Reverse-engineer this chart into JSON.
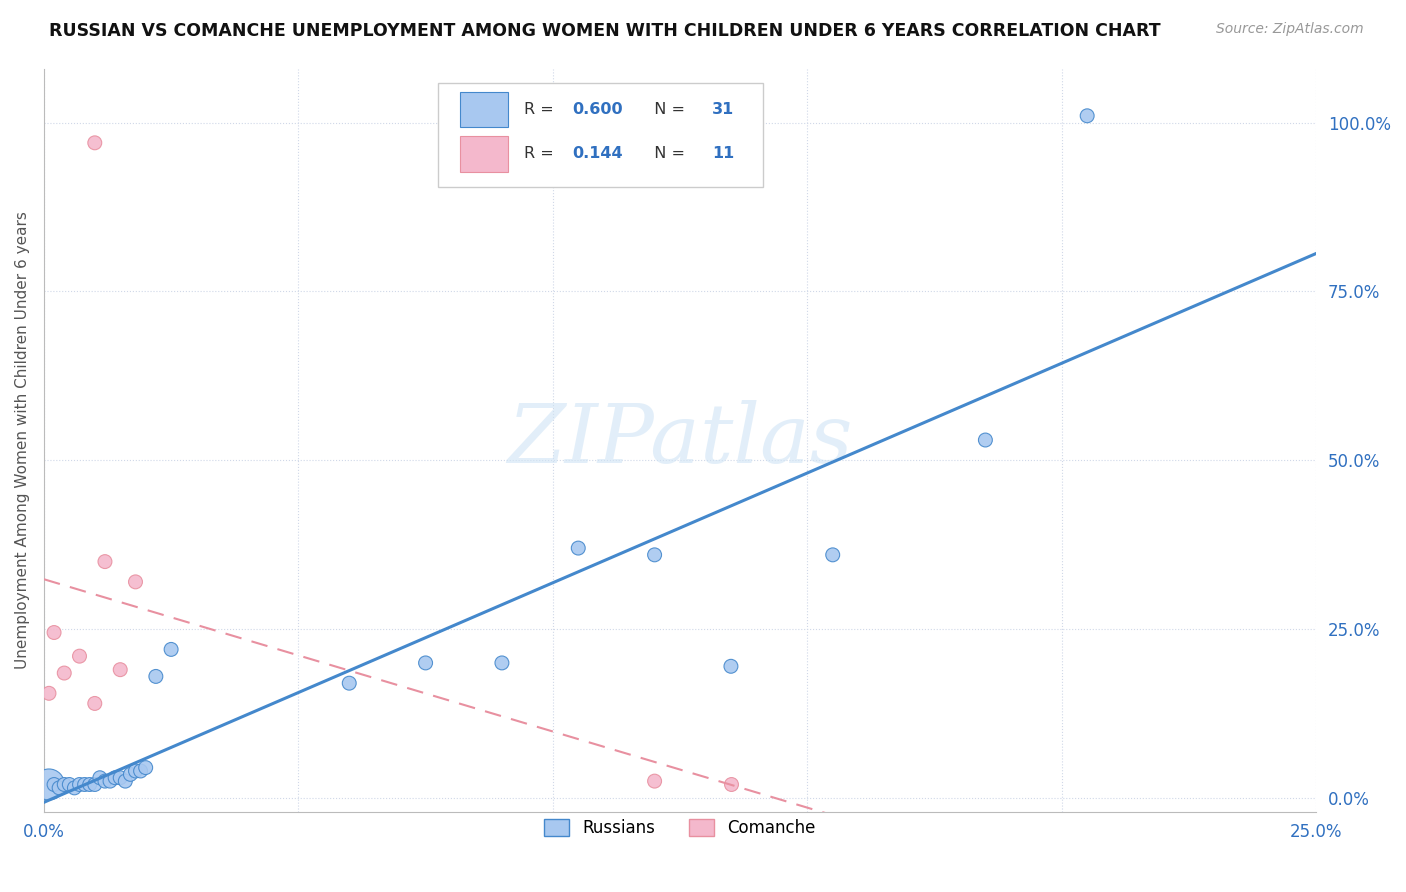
{
  "title": "RUSSIAN VS COMANCHE UNEMPLOYMENT AMONG WOMEN WITH CHILDREN UNDER 6 YEARS CORRELATION CHART",
  "source": "Source: ZipAtlas.com",
  "ylabel": "Unemployment Among Women with Children Under 6 years",
  "y_ticks_labels": [
    "0.0%",
    "25.0%",
    "50.0%",
    "75.0%",
    "100.0%"
  ],
  "y_ticks_vals": [
    0.0,
    0.25,
    0.5,
    0.75,
    1.0
  ],
  "x_tick_left": "0.0%",
  "x_tick_right": "25.0%",
  "xlim": [
    0.0,
    0.25
  ],
  "ylim": [
    -0.02,
    1.08
  ],
  "russian_R": "0.600",
  "russian_N": "31",
  "comanche_R": "0.144",
  "comanche_N": "11",
  "russian_color": "#a8c8f0",
  "comanche_color": "#f4b8cc",
  "russian_line_color": "#4488cc",
  "comanche_line_color": "#e890a0",
  "background_color": "#ffffff",
  "grid_color": "#d0d8e8",
  "watermark_text": "ZIPatlas",
  "russians_x": [
    0.001,
    0.002,
    0.003,
    0.004,
    0.005,
    0.006,
    0.007,
    0.008,
    0.009,
    0.01,
    0.011,
    0.012,
    0.013,
    0.014,
    0.015,
    0.016,
    0.017,
    0.018,
    0.019,
    0.02,
    0.022,
    0.025,
    0.06,
    0.075,
    0.09,
    0.105,
    0.12,
    0.135,
    0.155,
    0.185,
    0.205
  ],
  "russians_y": [
    0.02,
    0.02,
    0.015,
    0.02,
    0.02,
    0.015,
    0.02,
    0.02,
    0.02,
    0.02,
    0.03,
    0.025,
    0.025,
    0.03,
    0.03,
    0.025,
    0.035,
    0.04,
    0.04,
    0.045,
    0.18,
    0.22,
    0.17,
    0.2,
    0.2,
    0.37,
    0.36,
    0.195,
    0.36,
    0.53,
    1.01
  ],
  "russians_size": [
    500,
    100,
    100,
    100,
    100,
    100,
    100,
    100,
    100,
    100,
    100,
    100,
    100,
    100,
    100,
    100,
    100,
    100,
    100,
    100,
    100,
    100,
    100,
    100,
    100,
    100,
    100,
    100,
    100,
    100,
    100
  ],
  "comanche_x": [
    0.001,
    0.002,
    0.004,
    0.007,
    0.01,
    0.012,
    0.015,
    0.018,
    0.12,
    0.01
  ],
  "comanche_y": [
    0.155,
    0.245,
    0.185,
    0.21,
    0.97,
    0.35,
    0.19,
    0.32,
    0.025,
    0.14
  ],
  "comanche_size": [
    100,
    100,
    100,
    100,
    100,
    100,
    100,
    100,
    100,
    100
  ],
  "comanche2_x": [
    0.135
  ],
  "comanche2_y": [
    0.02
  ],
  "comanche2_size": [
    100
  ]
}
